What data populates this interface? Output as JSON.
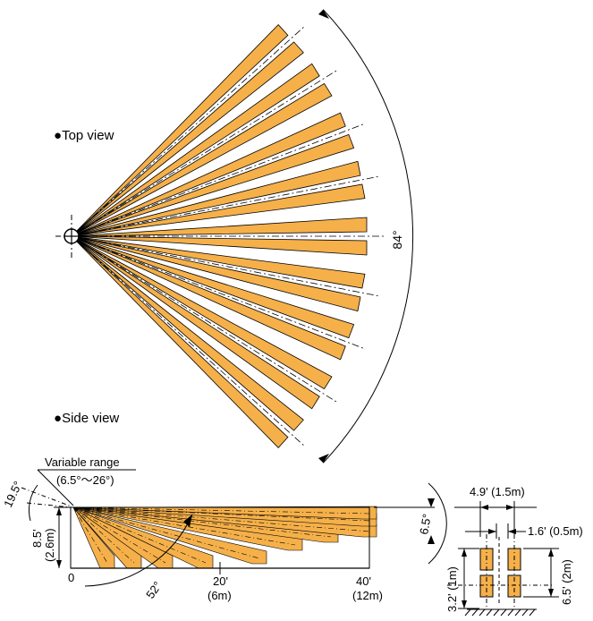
{
  "headings": {
    "top_view": "Top view",
    "side_view": "Side view"
  },
  "top_view": {
    "spread_angle_label": "84°",
    "beam_angles_deg": [
      -42,
      -32,
      -21,
      -11,
      0,
      11,
      21,
      32,
      42
    ]
  },
  "side_view": {
    "variable_range_label": "Variable range",
    "variable_range_values": "(6.5°～26°)",
    "tilt_angle_label": "19.5°",
    "height_label": "8.5'",
    "height_label_metric": "(2.6m)",
    "zero_label": "0",
    "mid_distance_label": "20'",
    "mid_distance_metric": "(6m)",
    "far_distance_label": "40'",
    "far_distance_metric": "(12m)",
    "fan_angle_label": "52°",
    "beam_width_label": "6.5°"
  },
  "dimensions": {
    "span_label": "4.9' (1.5m)",
    "gap_label": "1.6' (0.5m)",
    "top_height_label": "6.5' (2m)",
    "bottom_height_label": "3.2' (1m)"
  },
  "colors": {
    "beam_fill": "#f5b04a",
    "line": "#000000",
    "background": "#ffffff"
  }
}
